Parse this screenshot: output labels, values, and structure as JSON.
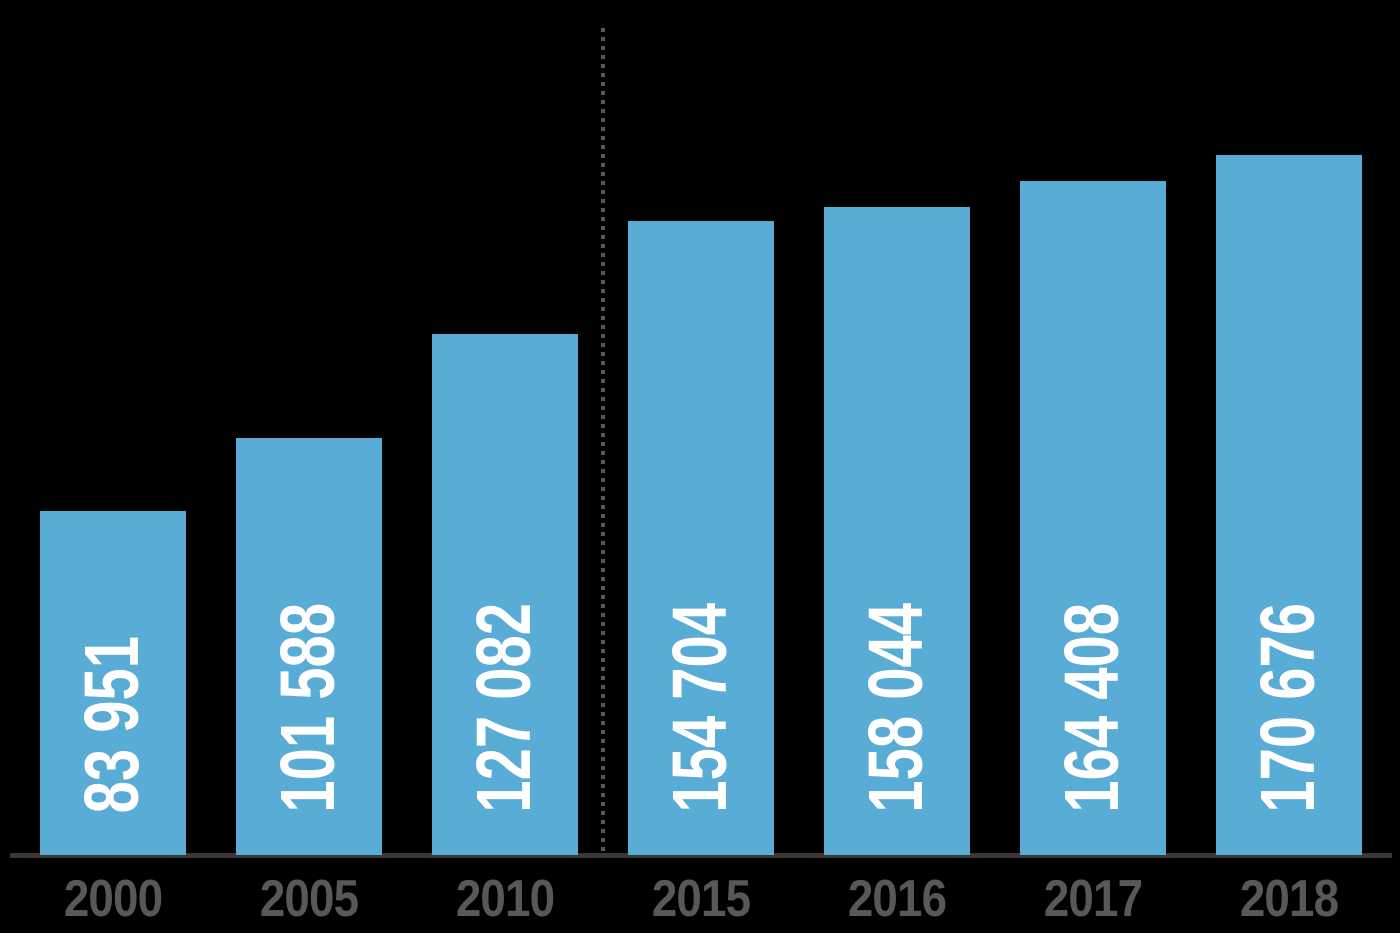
{
  "chart_data": {
    "type": "bar",
    "categories": [
      "2000",
      "2005",
      "2010",
      "2015",
      "2016",
      "2017",
      "2018"
    ],
    "values": [
      83951,
      101588,
      127082,
      154704,
      158044,
      164408,
      170676
    ],
    "value_labels": [
      "83 951",
      "101 588",
      "127 082",
      "154 704",
      "158 044",
      "164 408",
      "170 676"
    ],
    "title": "",
    "xlabel": "",
    "ylabel": "",
    "ylim": [
      0,
      200000
    ],
    "grid": false,
    "legend": false,
    "layout": {
      "value_labels_position": "inside-bottom-vertical",
      "separator": {
        "type": "dotted-vertical-line",
        "between_categories": [
          "2010",
          "2015"
        ]
      }
    },
    "colors": {
      "background": "#000000",
      "bar": "#59ACD6",
      "value_label": "#FFFFFF",
      "axis_label": "#56585A",
      "axis_line": "#3A3734",
      "separator_line": "#585858"
    }
  }
}
